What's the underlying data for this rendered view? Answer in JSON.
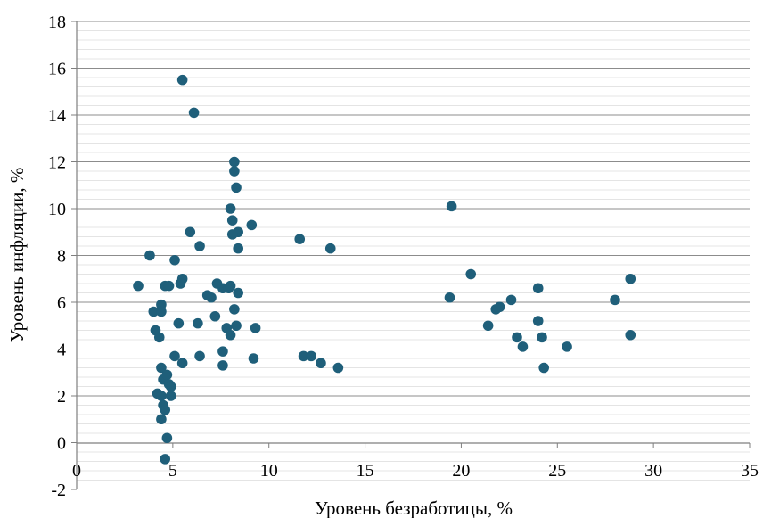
{
  "chart_data": {
    "type": "scatter",
    "xlabel": "Уровень безработицы, %",
    "ylabel": "Уровень инфляции, %",
    "xlim": [
      0,
      35
    ],
    "ylim": [
      -2,
      18
    ],
    "x_ticks": [
      0,
      5,
      10,
      15,
      20,
      25,
      30,
      35
    ],
    "y_ticks": [
      -2,
      0,
      2,
      4,
      6,
      8,
      10,
      12,
      14,
      16,
      18
    ],
    "x_tick_labels": [
      "0",
      "5",
      "10",
      "15",
      "20",
      "25",
      "30",
      "35"
    ],
    "y_tick_labels": [
      "-2",
      "0",
      "2",
      "4",
      "6",
      "8",
      "10",
      "12",
      "14",
      "16",
      "18"
    ],
    "grid": "horizontal",
    "marker_color": "#1f5f7a",
    "points": [
      {
        "x": 5.5,
        "y": 15.5
      },
      {
        "x": 6.1,
        "y": 14.1
      },
      {
        "x": 8.2,
        "y": 12.0
      },
      {
        "x": 8.2,
        "y": 11.6
      },
      {
        "x": 8.3,
        "y": 10.9
      },
      {
        "x": 8.0,
        "y": 10.0
      },
      {
        "x": 8.1,
        "y": 9.5
      },
      {
        "x": 9.1,
        "y": 9.3
      },
      {
        "x": 5.9,
        "y": 9.0
      },
      {
        "x": 8.4,
        "y": 9.0
      },
      {
        "x": 8.1,
        "y": 8.9
      },
      {
        "x": 6.4,
        "y": 8.4
      },
      {
        "x": 8.4,
        "y": 8.3
      },
      {
        "x": 11.6,
        "y": 8.7
      },
      {
        "x": 13.2,
        "y": 8.3
      },
      {
        "x": 3.8,
        "y": 8.0
      },
      {
        "x": 5.1,
        "y": 7.8
      },
      {
        "x": 5.5,
        "y": 7.0
      },
      {
        "x": 5.4,
        "y": 6.8
      },
      {
        "x": 3.2,
        "y": 6.7
      },
      {
        "x": 4.6,
        "y": 6.7
      },
      {
        "x": 4.8,
        "y": 6.7
      },
      {
        "x": 7.3,
        "y": 6.8
      },
      {
        "x": 7.6,
        "y": 6.6
      },
      {
        "x": 7.9,
        "y": 6.6
      },
      {
        "x": 8.0,
        "y": 6.7
      },
      {
        "x": 8.4,
        "y": 6.4
      },
      {
        "x": 6.8,
        "y": 6.3
      },
      {
        "x": 7.0,
        "y": 6.2
      },
      {
        "x": 4.4,
        "y": 5.9
      },
      {
        "x": 4.0,
        "y": 5.6
      },
      {
        "x": 4.4,
        "y": 5.6
      },
      {
        "x": 8.2,
        "y": 5.7
      },
      {
        "x": 7.2,
        "y": 5.4
      },
      {
        "x": 5.3,
        "y": 5.1
      },
      {
        "x": 6.3,
        "y": 5.1
      },
      {
        "x": 7.8,
        "y": 4.9
      },
      {
        "x": 8.3,
        "y": 5.0
      },
      {
        "x": 9.3,
        "y": 4.9
      },
      {
        "x": 4.1,
        "y": 4.8
      },
      {
        "x": 8.0,
        "y": 4.6
      },
      {
        "x": 4.3,
        "y": 4.5
      },
      {
        "x": 7.6,
        "y": 3.9
      },
      {
        "x": 6.4,
        "y": 3.7
      },
      {
        "x": 5.1,
        "y": 3.7
      },
      {
        "x": 5.5,
        "y": 3.4
      },
      {
        "x": 7.6,
        "y": 3.3
      },
      {
        "x": 9.2,
        "y": 3.6
      },
      {
        "x": 11.8,
        "y": 3.7
      },
      {
        "x": 12.2,
        "y": 3.7
      },
      {
        "x": 12.7,
        "y": 3.4
      },
      {
        "x": 13.6,
        "y": 3.2
      },
      {
        "x": 4.4,
        "y": 3.2
      },
      {
        "x": 4.5,
        "y": 2.7
      },
      {
        "x": 4.7,
        "y": 2.9
      },
      {
        "x": 4.8,
        "y": 2.5
      },
      {
        "x": 4.9,
        "y": 2.4
      },
      {
        "x": 4.2,
        "y": 2.1
      },
      {
        "x": 4.4,
        "y": 2.0
      },
      {
        "x": 4.9,
        "y": 2.0
      },
      {
        "x": 4.5,
        "y": 1.6
      },
      {
        "x": 4.6,
        "y": 1.4
      },
      {
        "x": 4.4,
        "y": 1.0
      },
      {
        "x": 4.7,
        "y": 0.2
      },
      {
        "x": 4.6,
        "y": -0.7
      },
      {
        "x": 19.5,
        "y": 10.1
      },
      {
        "x": 20.5,
        "y": 7.2
      },
      {
        "x": 19.4,
        "y": 6.2
      },
      {
        "x": 22.6,
        "y": 6.1
      },
      {
        "x": 22.0,
        "y": 5.8
      },
      {
        "x": 21.8,
        "y": 5.7
      },
      {
        "x": 24.0,
        "y": 6.6
      },
      {
        "x": 24.0,
        "y": 5.2
      },
      {
        "x": 21.4,
        "y": 5.0
      },
      {
        "x": 22.9,
        "y": 4.5
      },
      {
        "x": 24.2,
        "y": 4.5
      },
      {
        "x": 23.2,
        "y": 4.1
      },
      {
        "x": 25.5,
        "y": 4.1
      },
      {
        "x": 24.3,
        "y": 3.2
      },
      {
        "x": 28.0,
        "y": 6.1
      },
      {
        "x": 28.8,
        "y": 7.0
      },
      {
        "x": 28.8,
        "y": 4.6
      }
    ]
  }
}
